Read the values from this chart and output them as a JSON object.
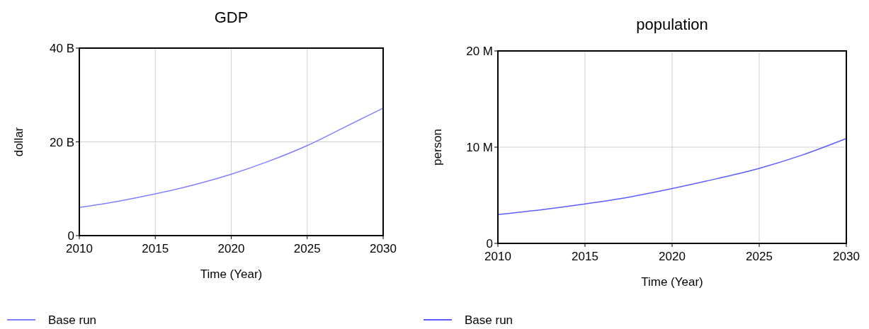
{
  "chart_data": [
    {
      "type": "line",
      "title": "GDP",
      "xlabel": "Time (Year)",
      "ylabel": "dollar",
      "x": [
        2010,
        2012.5,
        2015,
        2017.5,
        2020,
        2022.5,
        2025,
        2027.5,
        2030
      ],
      "series": [
        {
          "name": "Base run",
          "color": "#8080ff",
          "values": [
            6000000000.0,
            7300000000.0,
            8900000000.0,
            10800000000.0,
            13100000000.0,
            15900000000.0,
            19200000000.0,
            23200000000.0,
            27200000000.0
          ]
        }
      ],
      "xlim": [
        2010,
        2030
      ],
      "xticks": [
        2010,
        2015,
        2020,
        2025,
        2030
      ],
      "ylim": [
        0,
        40000000000.0
      ],
      "yticks": [
        {
          "value": 0,
          "label": "0"
        },
        {
          "value": 20000000000.0,
          "label": "20 B"
        },
        {
          "value": 40000000000.0,
          "label": "40 B"
        }
      ],
      "grid": true,
      "legend": "bottom left",
      "marker": "none",
      "line_style": "solid"
    },
    {
      "type": "line",
      "title": "population",
      "xlabel": "Time (Year)",
      "ylabel": "person",
      "x": [
        2010,
        2012.5,
        2015,
        2017.5,
        2020,
        2022.5,
        2025,
        2027.5,
        2030
      ],
      "series": [
        {
          "name": "Base run",
          "color": "#5c5cff",
          "values": [
            3000000.0,
            3500000.0,
            4100000.0,
            4800000.0,
            5700000.0,
            6700000.0,
            7800000.0,
            9200000.0,
            10900000.0
          ]
        }
      ],
      "xlim": [
        2010,
        2030
      ],
      "xticks": [
        2010,
        2015,
        2020,
        2025,
        2030
      ],
      "ylim": [
        0,
        20000000.0
      ],
      "yticks": [
        {
          "value": 0,
          "label": "0"
        },
        {
          "value": 10000000.0,
          "label": "10 M"
        },
        {
          "value": 20000000.0,
          "label": "20 M"
        }
      ],
      "grid": true,
      "legend": "bottom left",
      "marker": "none",
      "line_style": "solid"
    }
  ]
}
